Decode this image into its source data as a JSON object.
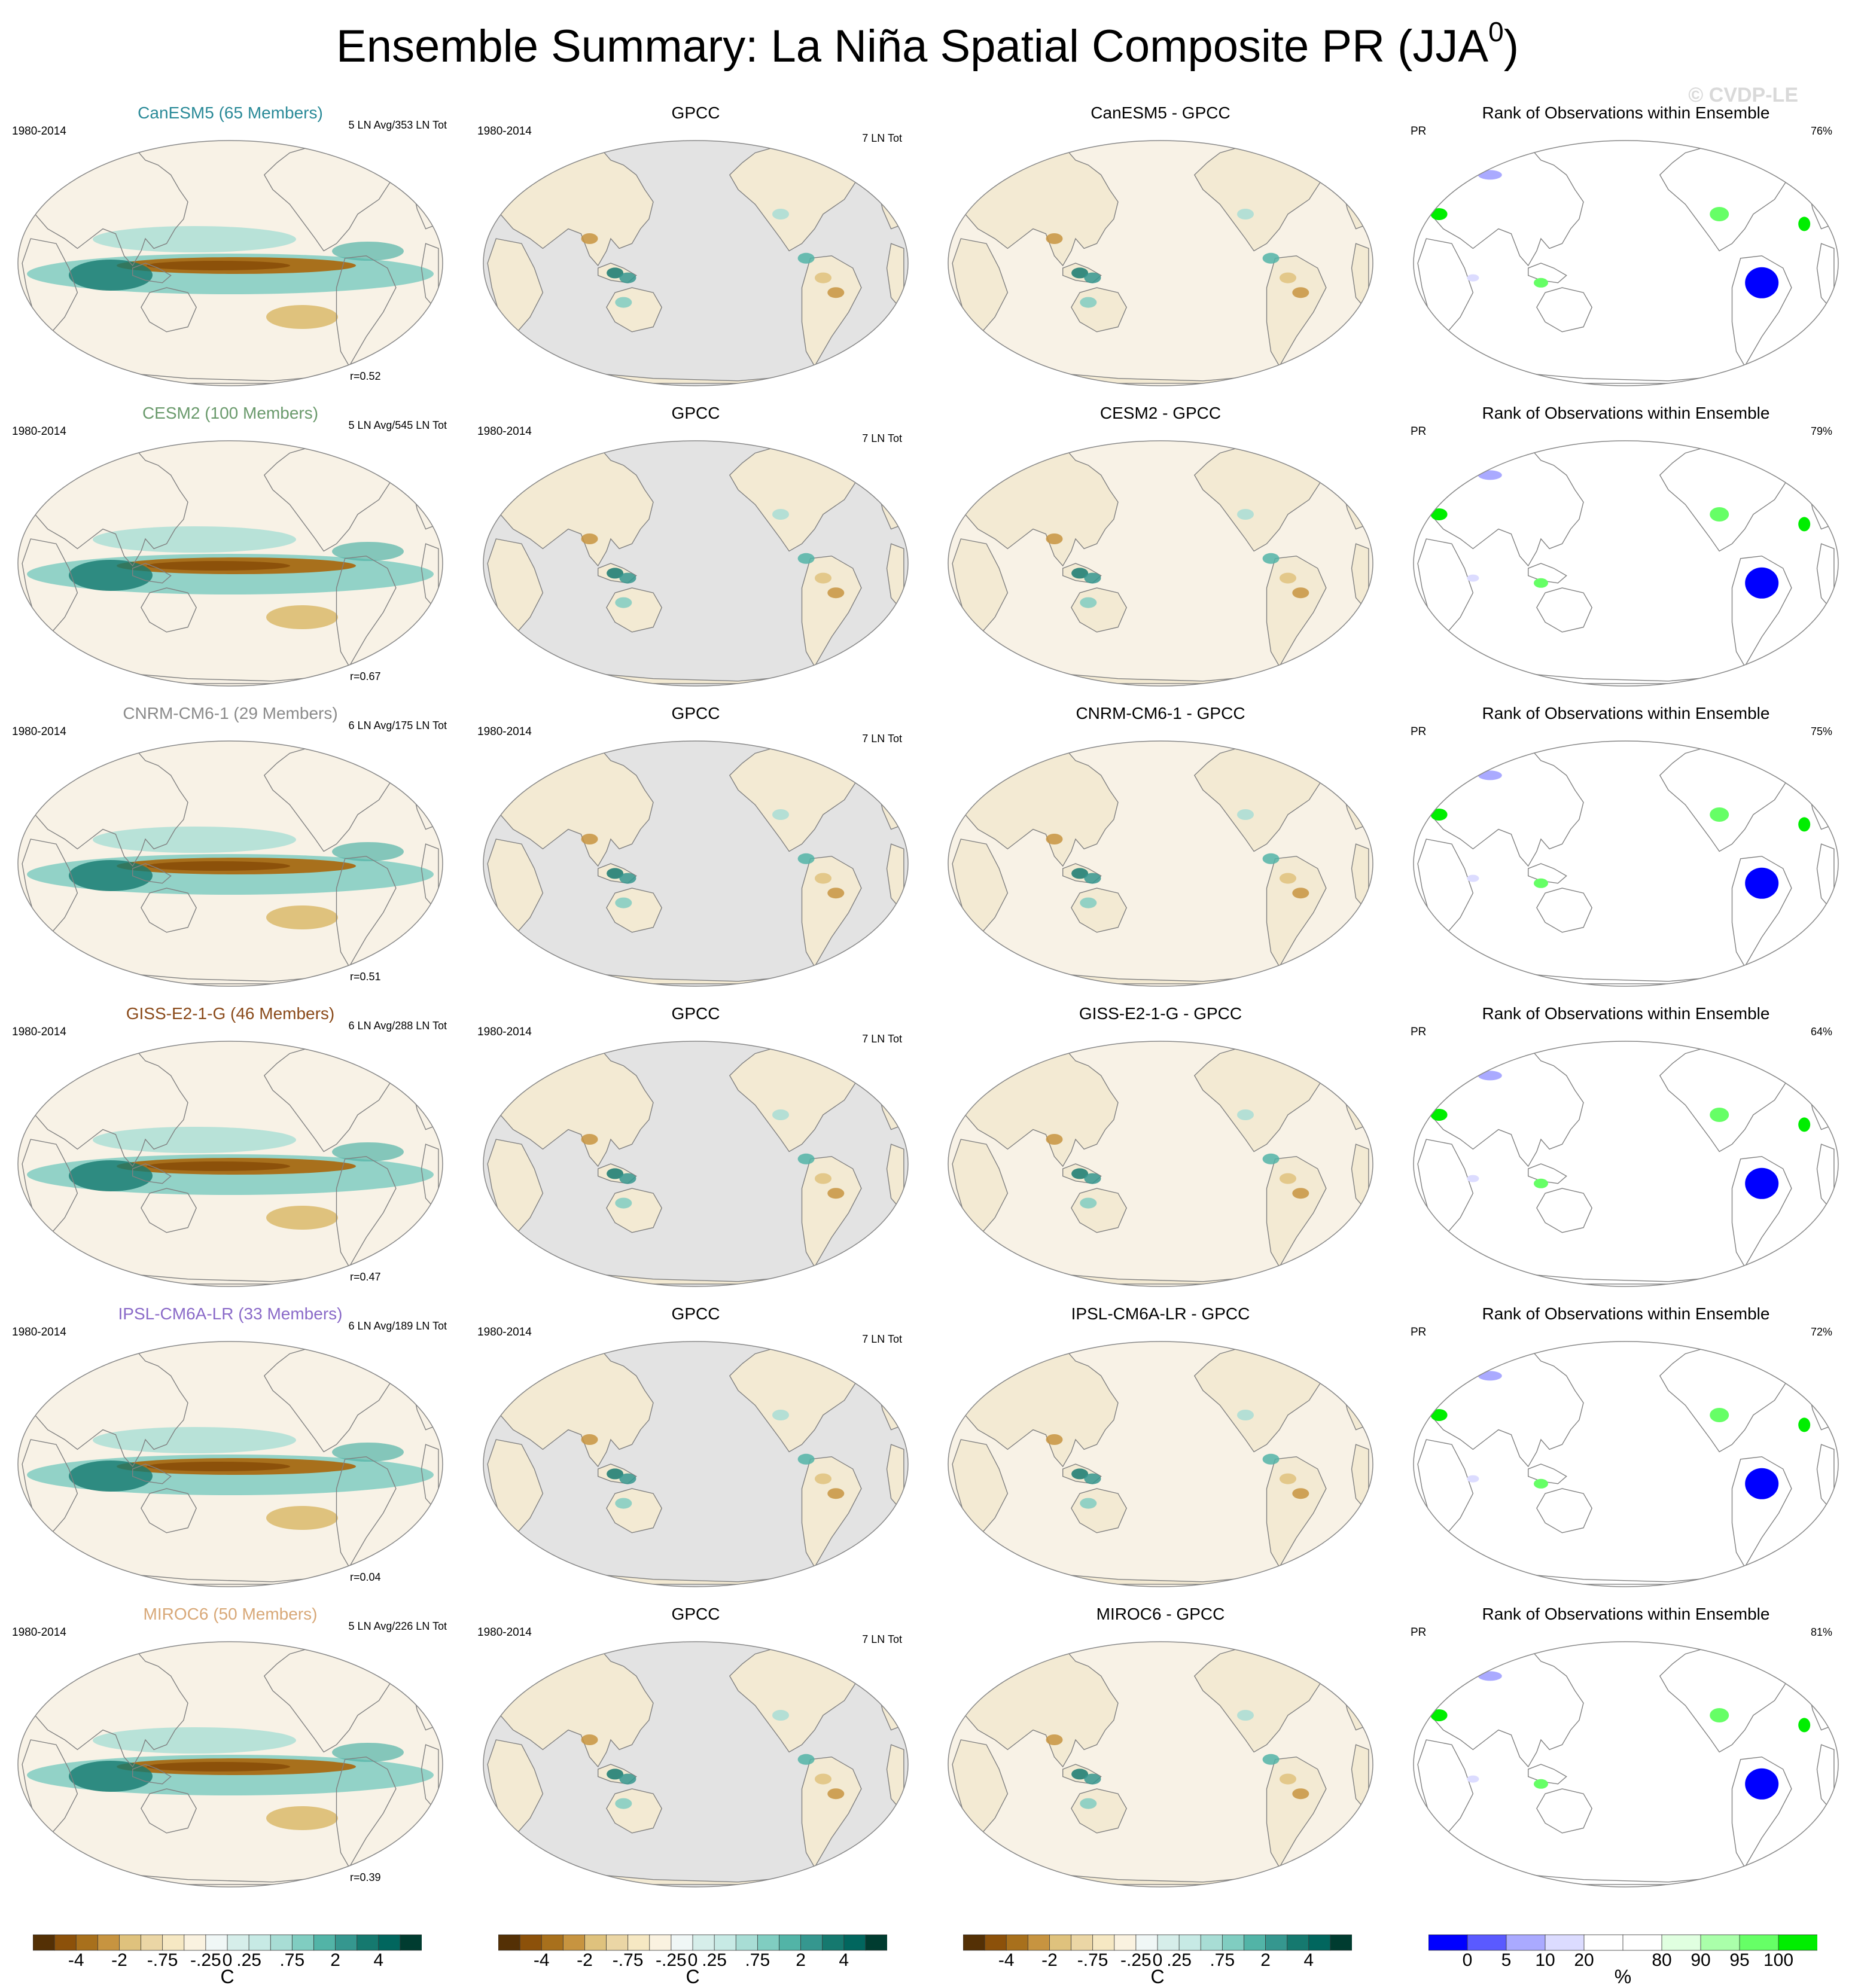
{
  "figure": {
    "title_main": "Ensemble Summary: La Niña Spatial Composite PR (JJA",
    "title_sup": "0",
    "title_end": ")",
    "watermark": "© CVDP-LE"
  },
  "colors": {
    "title_canesm5": "#2a8a98",
    "title_cesm2": "#6a9a6c",
    "title_cnrm": "#8a8a8a",
    "title_giss": "#8a4a1a",
    "title_ipsl": "#8a6ac8",
    "title_miroc6": "#d8a878",
    "ocean_obs": "#e3e3e3",
    "coast": "#808080"
  },
  "rows": [
    {
      "model": "CanESM5",
      "title": "CanESM5 (65 Members)",
      "color_key": "title_canesm5",
      "period": "1980-2014",
      "ln_count": "5 LN Avg/353 LN Tot",
      "corr": "r=0.52",
      "diff_title": "CanESM5 - GPCC",
      "rank_pct": "76%"
    },
    {
      "model": "CESM2",
      "title": "CESM2 (100 Members)",
      "color_key": "title_cesm2",
      "period": "1980-2014",
      "ln_count": "5 LN Avg/545 LN Tot",
      "corr": "r=0.67",
      "diff_title": "CESM2 - GPCC",
      "rank_pct": "79%"
    },
    {
      "model": "CNRM-CM6-1",
      "title": "CNRM-CM6-1 (29 Members)",
      "color_key": "title_cnrm",
      "period": "1980-2014",
      "ln_count": "6 LN Avg/175 LN Tot",
      "corr": "r=0.51",
      "diff_title": "CNRM-CM6-1 - GPCC",
      "rank_pct": "75%"
    },
    {
      "model": "GISS-E2-1-G",
      "title": "GISS-E2-1-G (46 Members)",
      "color_key": "title_giss",
      "period": "1980-2014",
      "ln_count": "6 LN Avg/288 LN Tot",
      "corr": "r=0.47",
      "diff_title": "GISS-E2-1-G - GPCC",
      "rank_pct": "64%"
    },
    {
      "model": "IPSL-CM6A-LR",
      "title": "IPSL-CM6A-LR (33 Members)",
      "color_key": "title_ipsl",
      "period": "1980-2014",
      "ln_count": "6 LN Avg/189 LN Tot",
      "corr": "r=0.04",
      "diff_title": "IPSL-CM6A-LR - GPCC",
      "rank_pct": "72%"
    },
    {
      "model": "MIROC6",
      "title": "MIROC6 (50 Members)",
      "color_key": "title_miroc6",
      "period": "1980-2014",
      "ln_count": "5 LN Avg/226 LN Tot",
      "corr": "r=0.39",
      "diff_title": "MIROC6 - GPCC",
      "rank_pct": "81%"
    }
  ],
  "obs": {
    "title": "GPCC",
    "period": "1980-2014",
    "ln_count": "7 LN Tot"
  },
  "rank": {
    "title": "Rank of Observations within Ensemble",
    "var": "PR"
  },
  "colorbars": {
    "pr": {
      "colors": [
        "#543005",
        "#8c510a",
        "#a8701c",
        "#c79440",
        "#dfc27d",
        "#ebd6a5",
        "#f6e8c3",
        "#faf2e0",
        "#f0f7f6",
        "#d6eeea",
        "#c7eae5",
        "#a8ddd5",
        "#80cdc1",
        "#52b4a7",
        "#35978f",
        "#15796f",
        "#01665e",
        "#003c30"
      ],
      "labels": [
        "-4",
        "-2",
        "-.75",
        "-.25",
        "0",
        ".25",
        ".75",
        "2",
        "4"
      ],
      "label_after_box": [
        2,
        4,
        6,
        8,
        9,
        10,
        12,
        14,
        16
      ],
      "unit": "C"
    },
    "rank": {
      "colors": [
        "#0000ff",
        "#5a5aff",
        "#aaaaff",
        "#dcdcff",
        "#ffffff",
        "#ffffff",
        "#e0ffe0",
        "#aaffaa",
        "#66ff66",
        "#00ee00"
      ],
      "labels": [
        "0",
        "5",
        "10",
        "20",
        "80",
        "90",
        "95",
        "100"
      ],
      "label_after_box": [
        1,
        2,
        3,
        4,
        6,
        7,
        8,
        9
      ],
      "unit": "%"
    }
  }
}
